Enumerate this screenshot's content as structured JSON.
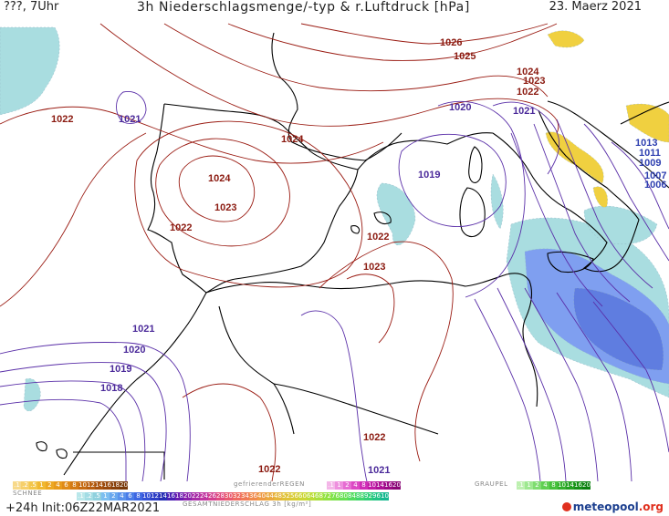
{
  "header": {
    "left": "???, 7Uhr",
    "title": "3h Niederschlagsmenge/-typ & r.Luftdruck [hPa]",
    "date": "23. Maerz 2021"
  },
  "footer": {
    "run": "+24h  Init:06Z22MAR2021"
  },
  "logo": {
    "text": "meteopool",
    "suffix": ".org"
  },
  "colors": {
    "isobar_high": "#9a1b12",
    "isobar_low": "#5a2fa8",
    "label_high": "#8b1a10",
    "label_low": "#4b2a9a",
    "label_lowest": "#2e3fb0",
    "coast": "#000000",
    "precip_light": "#a9dde0",
    "precip_blue": "#7f9ff0",
    "precip_dark": "#5f7de0",
    "snow": "#f0d040"
  },
  "map": {
    "isobar_labels": [
      {
        "id": "1026",
        "text": "1026",
        "kind": "high"
      },
      {
        "id": "1025",
        "text": "1025",
        "kind": "high"
      },
      {
        "id": "1024-ne",
        "text": "1024",
        "kind": "high"
      },
      {
        "id": "1023-ne",
        "text": "1023",
        "kind": "high"
      },
      {
        "id": "1022-ne",
        "text": "1022",
        "kind": "high"
      },
      {
        "id": "1022-w",
        "text": "1022",
        "kind": "high"
      },
      {
        "id": "1021-w",
        "text": "1021",
        "kind": "low"
      },
      {
        "id": "1024-n",
        "text": "1024",
        "kind": "high"
      },
      {
        "id": "1020-n",
        "text": "1020",
        "kind": "low"
      },
      {
        "id": "1021-it",
        "text": "1021",
        "kind": "low"
      },
      {
        "id": "1024-sp",
        "text": "1024",
        "kind": "high"
      },
      {
        "id": "1023-sp",
        "text": "1023",
        "kind": "high"
      },
      {
        "id": "1022-sp",
        "text": "1022",
        "kind": "high"
      },
      {
        "id": "1019-med",
        "text": "1019",
        "kind": "low"
      },
      {
        "id": "1022-med",
        "text": "1022",
        "kind": "high"
      },
      {
        "id": "1023-med",
        "text": "1023",
        "kind": "high"
      },
      {
        "id": "1013",
        "text": "1013",
        "kind": "lowest"
      },
      {
        "id": "1011",
        "text": "1011",
        "kind": "lowest"
      },
      {
        "id": "1009",
        "text": "1009",
        "kind": "lowest"
      },
      {
        "id": "1007",
        "text": "1007",
        "kind": "lowest"
      },
      {
        "id": "1006",
        "text": "1006",
        "kind": "lowest"
      },
      {
        "id": "1021-sw",
        "text": "1021",
        "kind": "low"
      },
      {
        "id": "1020-sw",
        "text": "1020",
        "kind": "low"
      },
      {
        "id": "1019-sw",
        "text": "1019",
        "kind": "low"
      },
      {
        "id": "1018-sw",
        "text": "1018",
        "kind": "low"
      },
      {
        "id": "1022-s1",
        "text": "1022",
        "kind": "high"
      },
      {
        "id": "1022-s2",
        "text": "1022",
        "kind": "high"
      },
      {
        "id": "1021-s",
        "text": "1021",
        "kind": "low"
      }
    ]
  },
  "legend": {
    "snow_title": "SCHNEE",
    "rain_freeze_title": "gefrierenderREGEN",
    "graupel_title": "GRAUPEL",
    "total_title": "GESAMTNIEDERSCHLAG 3h [kg/m²]",
    "snow": [
      {
        "label": ".1",
        "color": "#f7d98a"
      },
      {
        "label": ".2",
        "color": "#f6cf6a"
      },
      {
        "label": ".5",
        "color": "#f3c64a"
      },
      {
        "label": "1",
        "color": "#f0b830"
      },
      {
        "label": "2",
        "color": "#eda822"
      },
      {
        "label": "4",
        "color": "#e89a1a"
      },
      {
        "label": "6",
        "color": "#e08a16"
      },
      {
        "label": "8",
        "color": "#d47a14"
      },
      {
        "label": "10",
        "color": "#c66b12"
      },
      {
        "label": "12",
        "color": "#b85e10"
      },
      {
        "label": "14",
        "color": "#a8520e"
      },
      {
        "label": "16",
        "color": "#98480c"
      },
      {
        "label": "18",
        "color": "#88400b"
      },
      {
        "label": "2025+",
        "color": "#78380a"
      }
    ],
    "freezing": [
      {
        "label": ".1",
        "color": "#f4b6e8"
      },
      {
        "label": "1",
        "color": "#ee90de"
      },
      {
        "label": "2",
        "color": "#e66cd2"
      },
      {
        "label": "4",
        "color": "#dc48c4"
      },
      {
        "label": "8",
        "color": "#cf2cb6"
      },
      {
        "label": "10",
        "color": "#c01aa6"
      },
      {
        "label": "14",
        "color": "#ae1096"
      },
      {
        "label": "16",
        "color": "#9c0a86"
      },
      {
        "label": "2025+",
        "color": "#8a0676"
      }
    ],
    "graupel": [
      {
        "label": ".1",
        "color": "#bdf0b0"
      },
      {
        "label": "1",
        "color": "#9ee890"
      },
      {
        "label": "2",
        "color": "#7fdc70"
      },
      {
        "label": "4",
        "color": "#60cf52"
      },
      {
        "label": "8",
        "color": "#46c03c"
      },
      {
        "label": "10",
        "color": "#32b02c"
      },
      {
        "label": "14",
        "color": "#22a020"
      },
      {
        "label": "16",
        "color": "#149016"
      },
      {
        "label": "2025+",
        "color": "#0a800e"
      }
    ],
    "total": [
      {
        "label": ".1",
        "color": "#b9e7ea"
      },
      {
        "label": ".2",
        "color": "#a2dce4"
      },
      {
        "label": ".5",
        "color": "#8fd0de"
      },
      {
        "label": "1",
        "color": "#7dbff0"
      },
      {
        "label": "2",
        "color": "#6aa8ee"
      },
      {
        "label": "4",
        "color": "#5a92ec"
      },
      {
        "label": "6",
        "color": "#4a7ce8"
      },
      {
        "label": "8",
        "color": "#3d66e2"
      },
      {
        "label": "10",
        "color": "#3350d6"
      },
      {
        "label": "12",
        "color": "#2c3ec6"
      },
      {
        "label": "14",
        "color": "#262eb4"
      },
      {
        "label": "16",
        "color": "#4a20b4"
      },
      {
        "label": "18",
        "color": "#6a1cb0"
      },
      {
        "label": "20",
        "color": "#8a22ac"
      },
      {
        "label": "22",
        "color": "#a82ca8"
      },
      {
        "label": "24",
        "color": "#c036a0"
      },
      {
        "label": "26",
        "color": "#d24090"
      },
      {
        "label": "28",
        "color": "#e04c80"
      },
      {
        "label": "30",
        "color": "#e85a70"
      },
      {
        "label": "32",
        "color": "#ee6a62"
      },
      {
        "label": "34",
        "color": "#f07a56"
      },
      {
        "label": "36",
        "color": "#f08a4c"
      },
      {
        "label": "40",
        "color": "#ee9a44"
      },
      {
        "label": "44",
        "color": "#eaa83e"
      },
      {
        "label": "48",
        "color": "#e6b63a"
      },
      {
        "label": "52",
        "color": "#e0c238"
      },
      {
        "label": "56",
        "color": "#d8cc36"
      },
      {
        "label": "60",
        "color": "#ccd636"
      },
      {
        "label": "64",
        "color": "#bcdc38"
      },
      {
        "label": "68",
        "color": "#a8e03c"
      },
      {
        "label": "72",
        "color": "#92e242"
      },
      {
        "label": "76",
        "color": "#7ce24a"
      },
      {
        "label": "80",
        "color": "#66e054"
      },
      {
        "label": "84",
        "color": "#52dc60"
      },
      {
        "label": "88",
        "color": "#40d66c"
      },
      {
        "label": "92",
        "color": "#30ce78"
      },
      {
        "label": "96",
        "color": "#22c484"
      },
      {
        "label": "100",
        "color": "#16b890"
      }
    ]
  }
}
